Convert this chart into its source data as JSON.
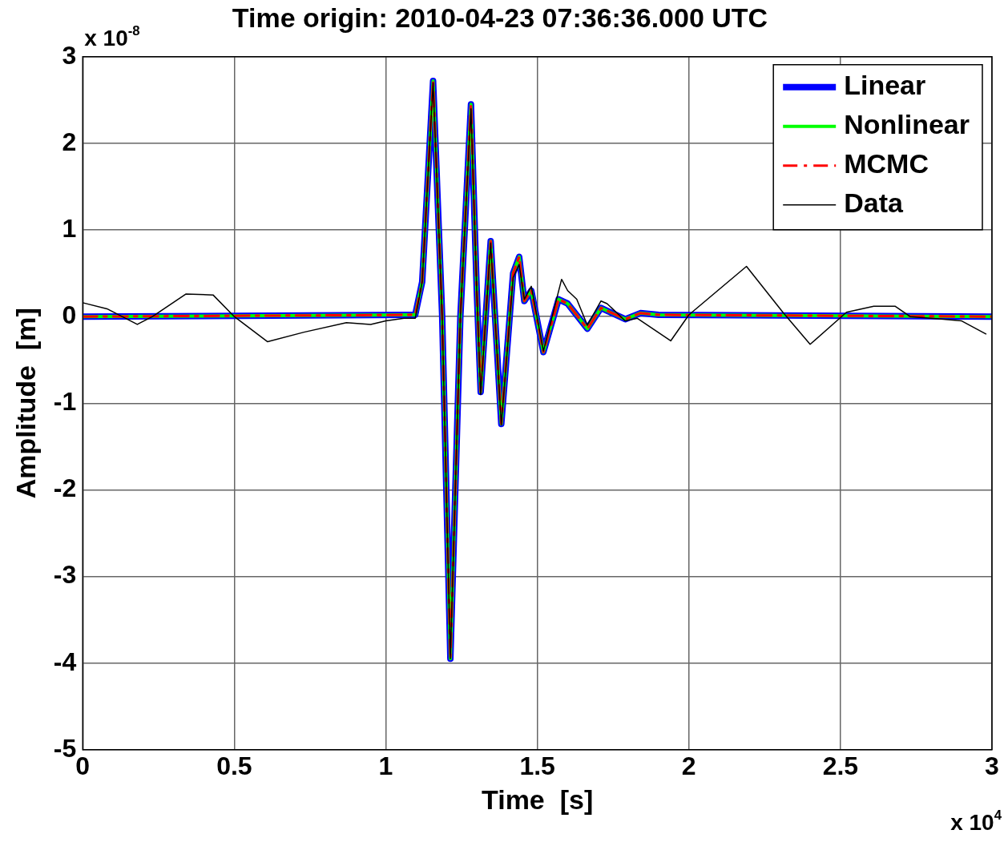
{
  "chart_data": {
    "type": "line",
    "title": "Time origin: 2010-04-23 07:36:36.000 UTC",
    "xlabel": "Time  [s]",
    "ylabel": "Amplitude  [m]",
    "annotations": [
      "x 10$^{-8}$",
      "x 10$^{4}$"
    ],
    "xlim": [
      0,
      3
    ],
    "xticks": [
      0,
      0.5,
      1,
      1.5,
      2,
      2.5,
      3
    ],
    "ylim": [
      -5,
      3
    ],
    "yticks": [
      -5,
      -4,
      -3,
      -2,
      -1,
      0,
      1,
      2,
      3
    ],
    "grid": true,
    "legend": "top right",
    "series": [
      {
        "name": "Linear",
        "color": "#0000ff",
        "line_style": "solid",
        "x": [
          0,
          1.097,
          1.12,
          1.156,
          1.186,
          1.213,
          1.246,
          1.281,
          1.3,
          1.313,
          1.346,
          1.381,
          1.42,
          1.44,
          1.457,
          1.48,
          1.52,
          1.57,
          1.6,
          1.665,
          1.71,
          1.79,
          1.84,
          1.9,
          3
        ],
        "values": [
          0,
          0.02,
          0.4,
          2.72,
          0,
          -3.95,
          0,
          2.45,
          0.3,
          -0.87,
          0.87,
          -1.24,
          0.5,
          0.69,
          0.18,
          0.3,
          -0.41,
          0.2,
          0.15,
          -0.14,
          0.1,
          -0.03,
          0.04,
          0.02,
          0
        ]
      },
      {
        "name": "Nonlinear",
        "color": "#00ff00",
        "line_style": "solid",
        "x": [
          0,
          1.097,
          1.12,
          1.156,
          1.186,
          1.213,
          1.246,
          1.281,
          1.3,
          1.313,
          1.346,
          1.381,
          1.42,
          1.44,
          1.457,
          1.48,
          1.52,
          1.57,
          1.6,
          1.665,
          1.71,
          1.79,
          1.84,
          1.9,
          3
        ],
        "values": [
          0,
          0.02,
          0.4,
          2.72,
          0,
          -3.95,
          0,
          2.45,
          0.3,
          -0.87,
          0.87,
          -1.24,
          0.5,
          0.69,
          0.18,
          0.3,
          -0.41,
          0.2,
          0.15,
          -0.14,
          0.1,
          -0.03,
          0.04,
          0.02,
          0
        ]
      },
      {
        "name": "MCMC",
        "color": "#ff0000",
        "line_style": "dashed",
        "x": [
          0,
          1.097,
          1.12,
          1.156,
          1.186,
          1.213,
          1.246,
          1.281,
          1.3,
          1.313,
          1.346,
          1.381,
          1.42,
          1.44,
          1.457,
          1.48,
          1.52,
          1.57,
          1.6,
          1.665,
          1.71,
          1.79,
          1.84,
          1.9,
          3
        ],
        "values": [
          0,
          0.02,
          0.4,
          2.72,
          0,
          -3.95,
          0,
          2.45,
          0.3,
          -0.87,
          0.87,
          -1.24,
          0.5,
          0.69,
          0.18,
          0.3,
          -0.41,
          0.2,
          0.15,
          -0.14,
          0.1,
          -0.03,
          0.04,
          0.02,
          0
        ]
      },
      {
        "name": "Data",
        "color": "#000000",
        "line_style": "solid",
        "x": [
          0,
          0.08,
          0.18,
          0.23,
          0.34,
          0.43,
          0.5,
          0.61,
          0.73,
          0.87,
          0.95,
          1.0,
          1.06,
          1.097,
          1.12,
          1.156,
          1.186,
          1.213,
          1.246,
          1.281,
          1.3,
          1.313,
          1.346,
          1.381,
          1.42,
          1.44,
          1.457,
          1.48,
          1.52,
          1.58,
          1.6,
          1.63,
          1.665,
          1.71,
          1.73,
          1.79,
          1.83,
          1.94,
          2.0,
          2.19,
          2.31,
          2.4,
          2.52,
          2.61,
          2.68,
          2.73,
          2.84,
          2.9,
          2.98
        ],
        "values": [
          0.16,
          0.09,
          -0.09,
          0,
          0.26,
          0.25,
          0,
          -0.29,
          -0.18,
          -0.07,
          -0.09,
          -0.05,
          -0.02,
          -0.02,
          0.4,
          2.7,
          0,
          -3.95,
          0,
          2.4,
          0.3,
          -0.9,
          0.85,
          -1.25,
          0.45,
          0.6,
          0.2,
          0.35,
          -0.4,
          0.43,
          0.3,
          0.2,
          -0.1,
          0.18,
          0.15,
          -0.05,
          -0.02,
          -0.28,
          0.02,
          0.58,
          0.05,
          -0.32,
          0.05,
          0.12,
          0.12,
          0,
          -0.03,
          -0.05,
          -0.2
        ]
      }
    ]
  }
}
